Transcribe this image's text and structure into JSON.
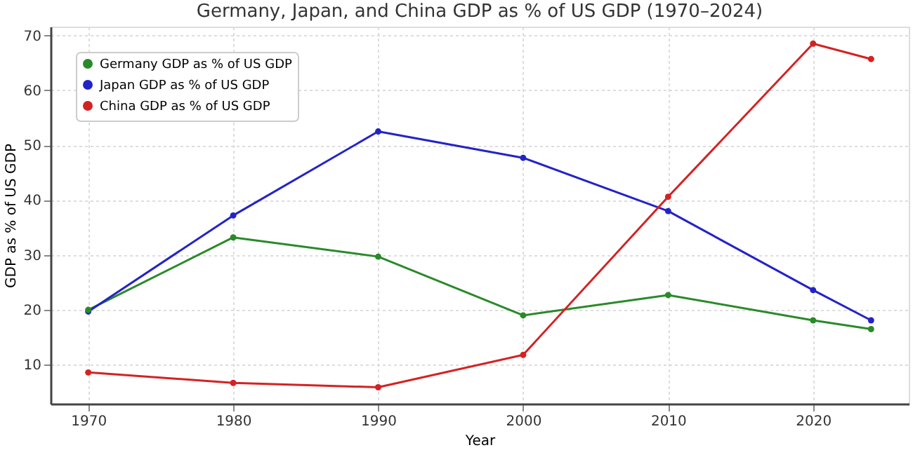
{
  "chart_data": {
    "type": "line",
    "title": "Germany, Japan, and China GDP as % of US GDP (1970–2024)",
    "xlabel": "Year",
    "ylabel": "GDP as % of US GDP",
    "x": [
      1970,
      1980,
      1990,
      2000,
      2010,
      2020,
      2024
    ],
    "series": [
      {
        "name": "Germany GDP as % of US GDP",
        "color": "#2a8a2a",
        "values": [
          20.0,
          33.2,
          29.7,
          19.0,
          22.7,
          18.1,
          16.5
        ]
      },
      {
        "name": "Japan GDP as % of US GDP",
        "color": "#2323c8",
        "values": [
          19.7,
          37.2,
          52.5,
          47.7,
          38.0,
          23.6,
          18.1
        ]
      },
      {
        "name": "China GDP as % of US GDP",
        "color": "#d42222",
        "values": [
          8.6,
          6.7,
          5.9,
          11.8,
          40.6,
          68.5,
          65.7
        ]
      }
    ],
    "xlim": [
      1967.4,
      2026.6
    ],
    "xticks": [
      1970,
      1980,
      1990,
      2000,
      2010,
      2020
    ],
    "ylim": [
      2.9,
      71.6
    ],
    "yticks": [
      10,
      20,
      30,
      40,
      50,
      60,
      70
    ],
    "grid": true,
    "legend": "top left",
    "marker": "circle",
    "line_style": "solid"
  }
}
